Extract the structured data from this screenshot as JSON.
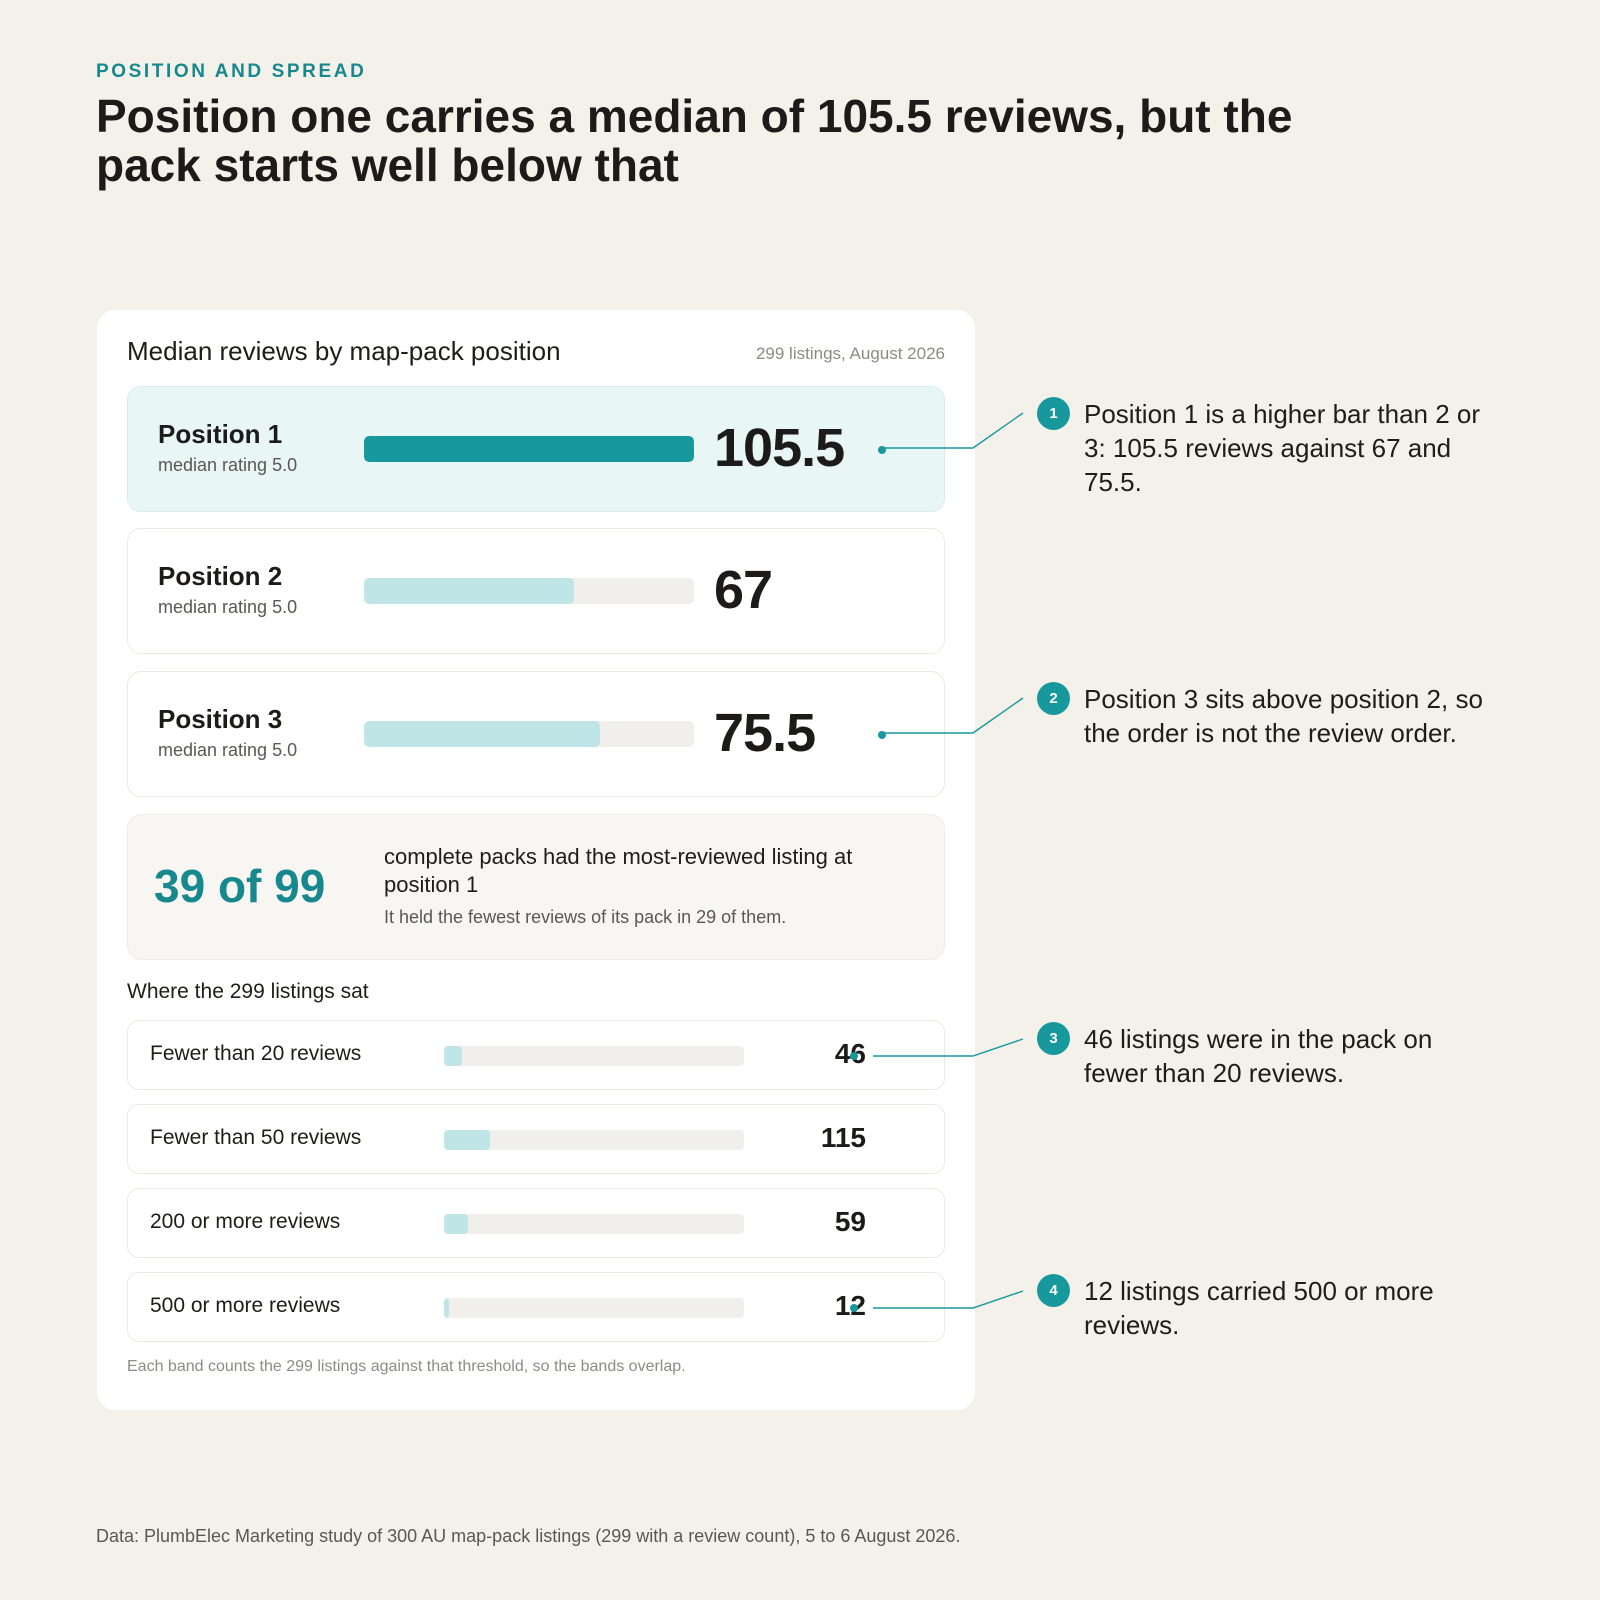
{
  "header": {
    "eyebrow": "POSITION AND SPREAD",
    "headline": "Position one carries a median of 105.5 reviews, but the pack starts well below that"
  },
  "card": {
    "title": "Median reviews by map-pack position",
    "meta": "299 listings, August 2026",
    "stat": {
      "big": "39 of 99",
      "main": "complete packs had the most-reviewed listing at position 1",
      "sub": "It held the fewest reviews of its pack in 29 of them."
    },
    "bands_title": "Where the 299 listings sat",
    "footnote": "Each band counts the 299 listings against that threshold, so the bands overlap."
  },
  "callouts": [
    {
      "badge": "1",
      "text": "Position 1 is a higher bar than 2 or 3: 105.5 reviews against 67 and 75.5."
    },
    {
      "badge": "2",
      "text": "Position 3 sits above position 2, so the order is not the review order."
    },
    {
      "badge": "3",
      "text": "46 listings were in the pack on fewer than 20 reviews."
    },
    {
      "badge": "4",
      "text": "12 listings carried 500 or more reviews."
    }
  ],
  "footer": "Data: PlumbElec Marketing study of 300 AU map-pack listings (299 with a review count), 5 to 6 August 2026.",
  "colors": {
    "accent": "#17988D",
    "bar_light": "#BFE5E7",
    "background": "#F3F1EA"
  },
  "chart_data": [
    {
      "type": "bar",
      "title": "Median reviews by map-pack position",
      "categories": [
        "Position 1",
        "Position 2",
        "Position 3"
      ],
      "subtitles": [
        "median rating 5.0",
        "median rating 5.0",
        "median rating 5.0"
      ],
      "values": [
        105.5,
        67,
        75.5
      ],
      "value_labels": [
        "105.5",
        "67",
        "75.5"
      ],
      "xlim": [
        0,
        105.5
      ]
    },
    {
      "type": "bar",
      "title": "Where the 299 listings sat",
      "categories": [
        "Fewer than 20 reviews",
        "Fewer than 50 reviews",
        "200 or more reviews",
        "500 or more reviews"
      ],
      "values": [
        46,
        115,
        59,
        12
      ],
      "value_labels": [
        "46",
        "115",
        "59",
        "12"
      ],
      "xlim": [
        0,
        750
      ]
    }
  ]
}
